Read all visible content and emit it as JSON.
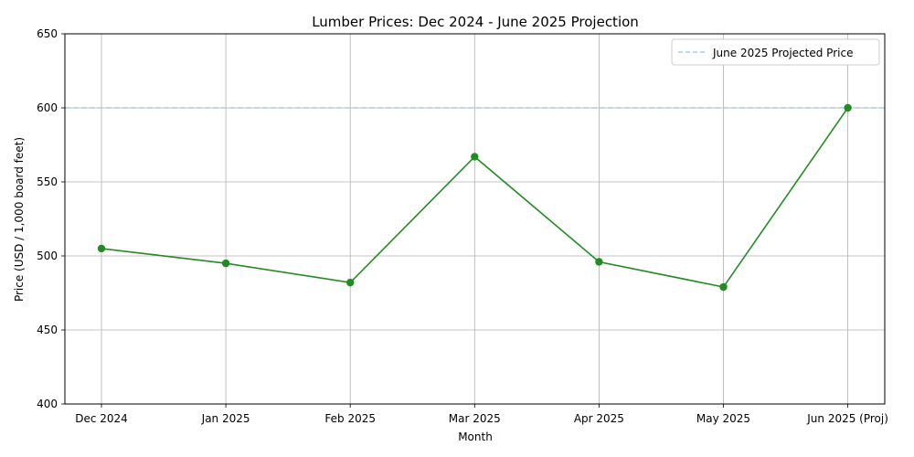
{
  "chart_data": {
    "type": "line",
    "title": "Lumber Prices: Dec 2024 - June 2025 Projection",
    "xlabel": "Month",
    "ylabel": "Price (USD / 1,000 board feet)",
    "categories": [
      "Dec 2024",
      "Jan 2025",
      "Feb 2025",
      "Mar 2025",
      "Apr 2025",
      "May 2025",
      "Jun 2025 (Proj)"
    ],
    "series": [
      {
        "values": [
          505,
          495,
          482,
          567,
          496,
          479,
          600
        ],
        "color": "#228b22",
        "marker": "circle"
      }
    ],
    "reference_line": {
      "name": "June 2025 Projected Price",
      "value": 600,
      "color": "#a6cee3",
      "style": "dashed"
    },
    "ylim": [
      400,
      650
    ],
    "yticks": [
      400,
      450,
      500,
      550,
      600,
      650
    ],
    "grid": true,
    "legend_position": "top-right"
  }
}
